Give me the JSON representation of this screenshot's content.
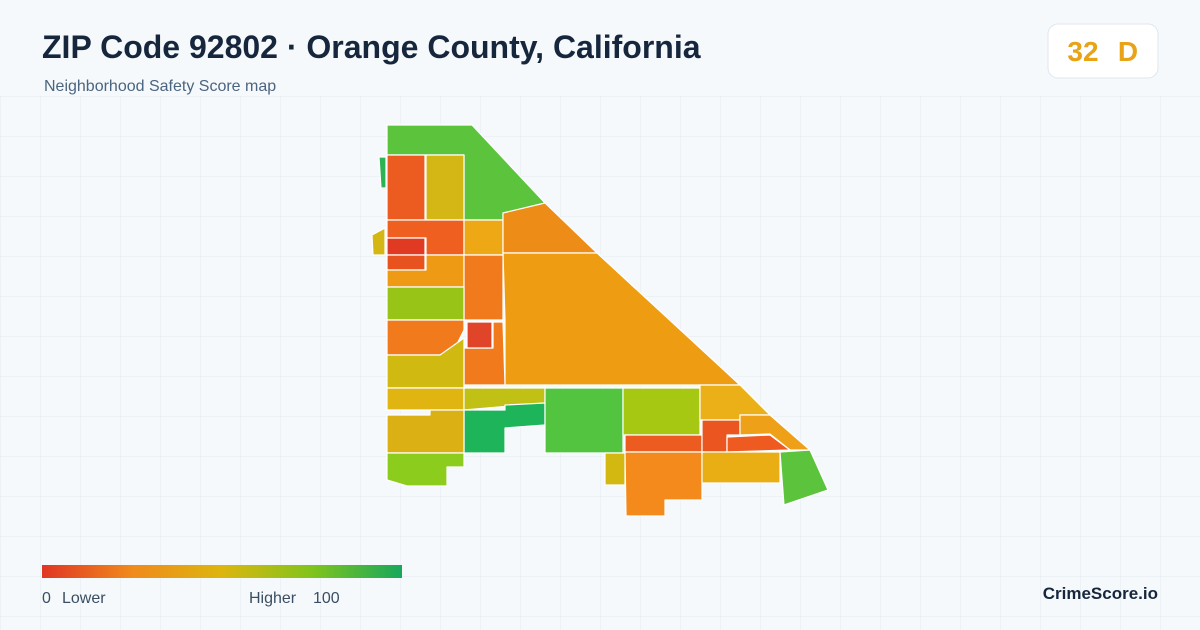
{
  "header": {
    "title": "ZIP Code 92802 · Orange County, California",
    "subtitle": "Neighborhood Safety Score map"
  },
  "score": {
    "value": 32,
    "grade": "D"
  },
  "legend": {
    "min": 0,
    "min_label": "Lower",
    "max_label": "Higher",
    "max": 100
  },
  "brand": "CrimeScore.io"
}
